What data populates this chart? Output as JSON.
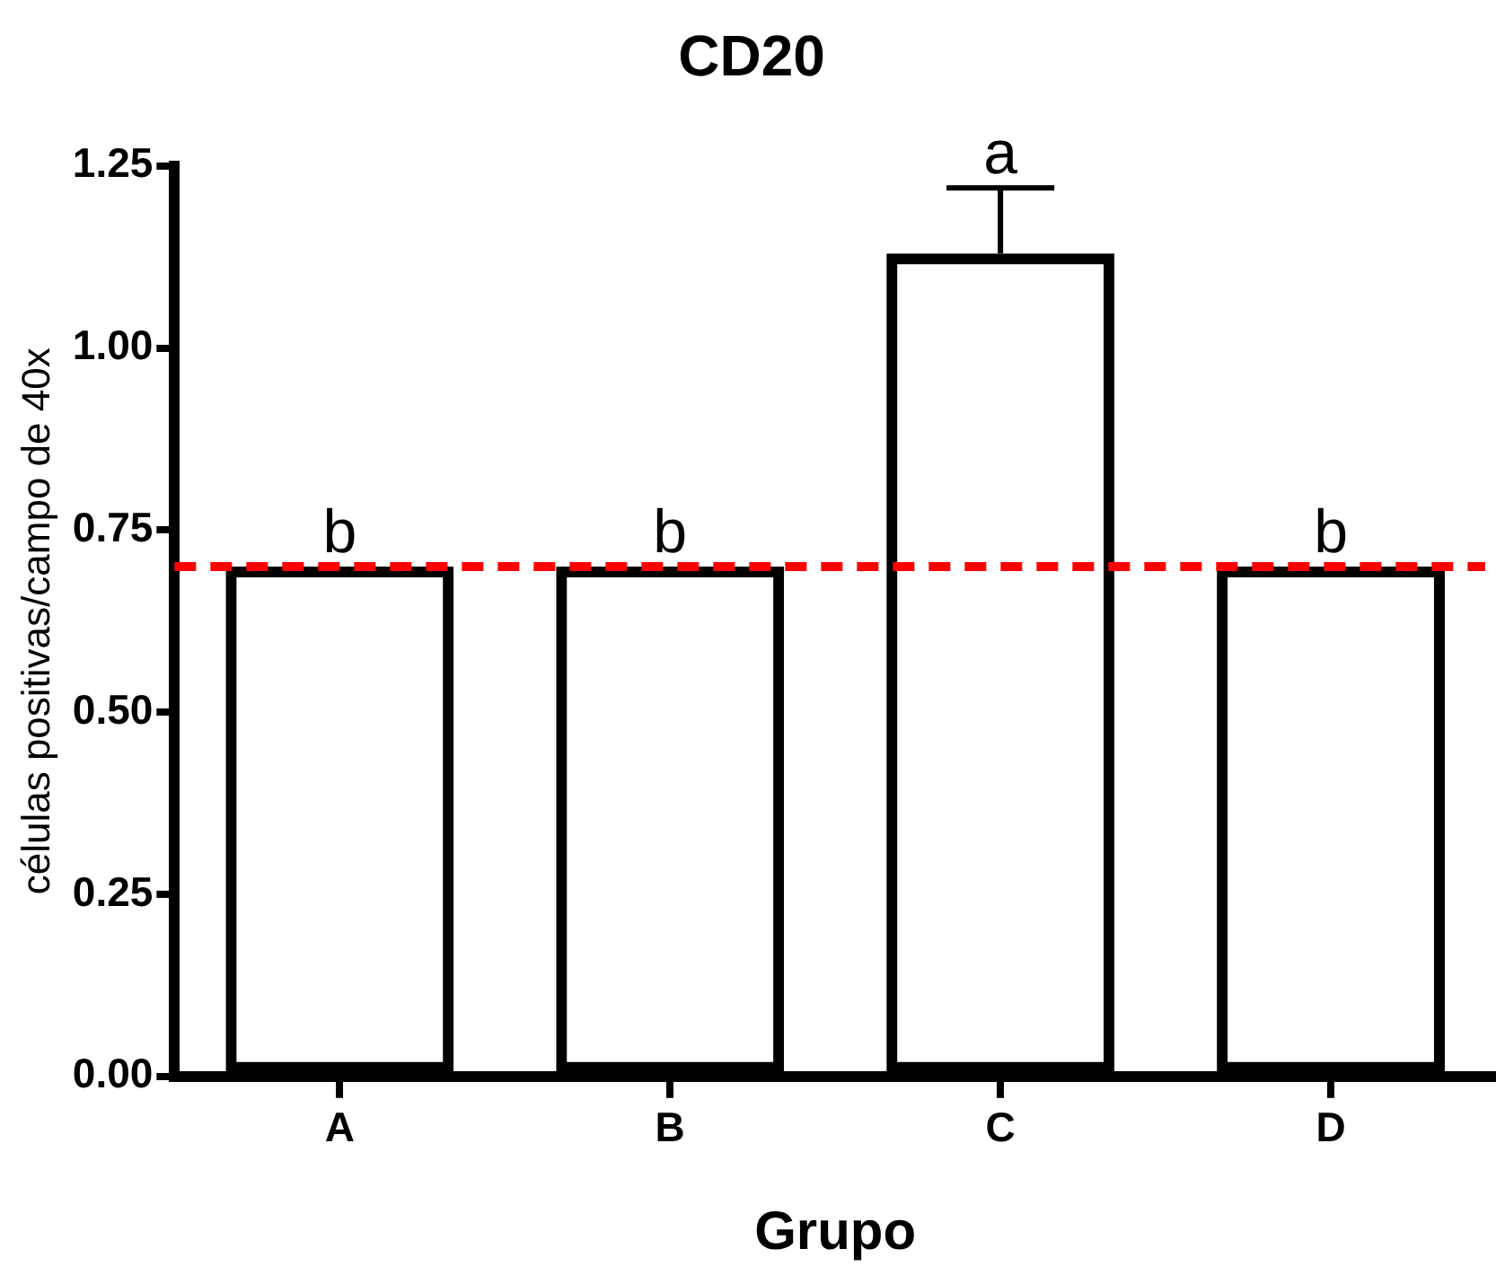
{
  "chart_data": {
    "type": "bar",
    "title": "CD20",
    "xlabel": "Grupo",
    "ylabel": "células positivas/campo de 40x",
    "categories": [
      "A",
      "B",
      "C",
      "D"
    ],
    "values": [
      0.7,
      0.7,
      1.13,
      0.7
    ],
    "errors": [
      null,
      null,
      [
        1.13,
        1.22
      ],
      null
    ],
    "color": "#000000",
    "ylim": [
      0,
      1.25
    ],
    "yticks": [
      {
        "value": 0,
        "label": "0.00"
      },
      {
        "value": 0.25,
        "label": "0.25"
      },
      {
        "value": 0.5,
        "label": "0.50"
      },
      {
        "value": 0.75,
        "label": "0.75"
      },
      {
        "value": 1,
        "label": "1.00"
      },
      {
        "value": 1.25,
        "label": "1.25"
      }
    ],
    "grid": false,
    "legend": false,
    "ref_lines": [
      {
        "axis": "y",
        "value": 0.7,
        "color": "#ff0000",
        "line_style": "dashed"
      }
    ],
    "annotations": [
      {
        "text": "b",
        "x": "A",
        "y": 0.7
      },
      {
        "text": "b",
        "x": "B",
        "y": 0.7
      },
      {
        "text": "a",
        "x": "C",
        "y": 1.22
      },
      {
        "text": "b",
        "x": "D",
        "y": 0.7
      }
    ]
  }
}
